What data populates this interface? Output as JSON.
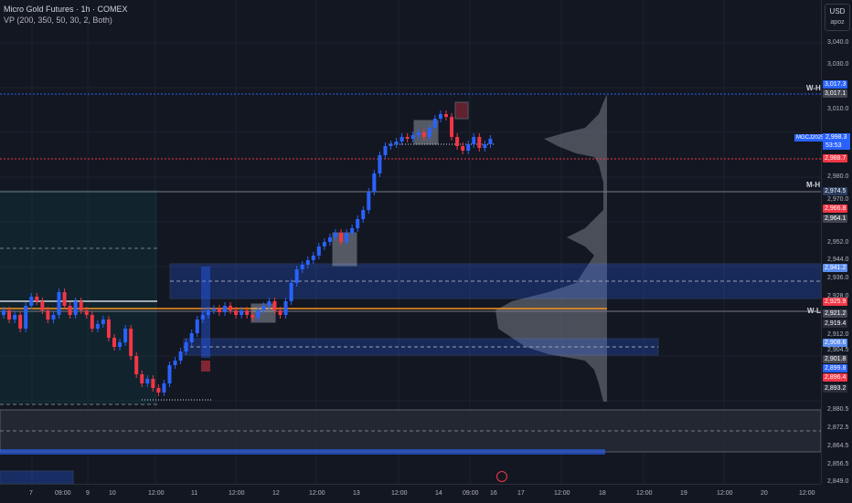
{
  "legend": {
    "title": "Micro Gold Futures · 1h · COMEX",
    "subtitle": "VP (200, 350, 50, 30, 2, Both)"
  },
  "currency_box": {
    "code": "USD",
    "sub": "apoz"
  },
  "price_axis": {
    "ticks": [
      "3,040.0",
      "3,030.0",
      "3,010.0",
      "2,980.0",
      "2,970.0",
      "2,952.0",
      "2,944.0",
      "2,936.0",
      "2,928.0",
      "2,912.0",
      "2,904.5",
      "2,880.5",
      "2,872.5",
      "2,864.5",
      "2,856.5",
      "2,849.0"
    ]
  },
  "price_tags": {
    "wh_1": "3,017.3",
    "wh_2": "3,017.1",
    "last": "2,998.3",
    "countdown": "53:53",
    "symbol": "MGCJ2025",
    "red_line": "2,988.7",
    "mh": "2,974.5",
    "p1": "2,966.8",
    "p2": "2,964.1",
    "p3": "2,941.2",
    "p4": "2,925.9",
    "p5": "2,921.2",
    "p6": "2,919.4",
    "p7": "2,908.6",
    "p8": "2,901.8",
    "p9": "2,899.8",
    "p10": "2,896.4",
    "p11": "2,893.2"
  },
  "level_labels": {
    "wh": "W-H",
    "mh": "M-H",
    "wl": "W-L"
  },
  "time_axis": {
    "ticks": [
      "7",
      "09:00",
      "9",
      "10",
      "12:00",
      "11",
      "12:00",
      "12",
      "12:00",
      "13",
      "12:00",
      "14",
      "09:00",
      "16",
      "17",
      "12:00",
      "18",
      "12:00",
      "19",
      "12:00",
      "20",
      "12:00"
    ]
  },
  "colors": {
    "up": "#2962ff",
    "down": "#f23645",
    "bg": "#131722",
    "zone": "#2962ff",
    "orange": "#f7931a"
  }
}
